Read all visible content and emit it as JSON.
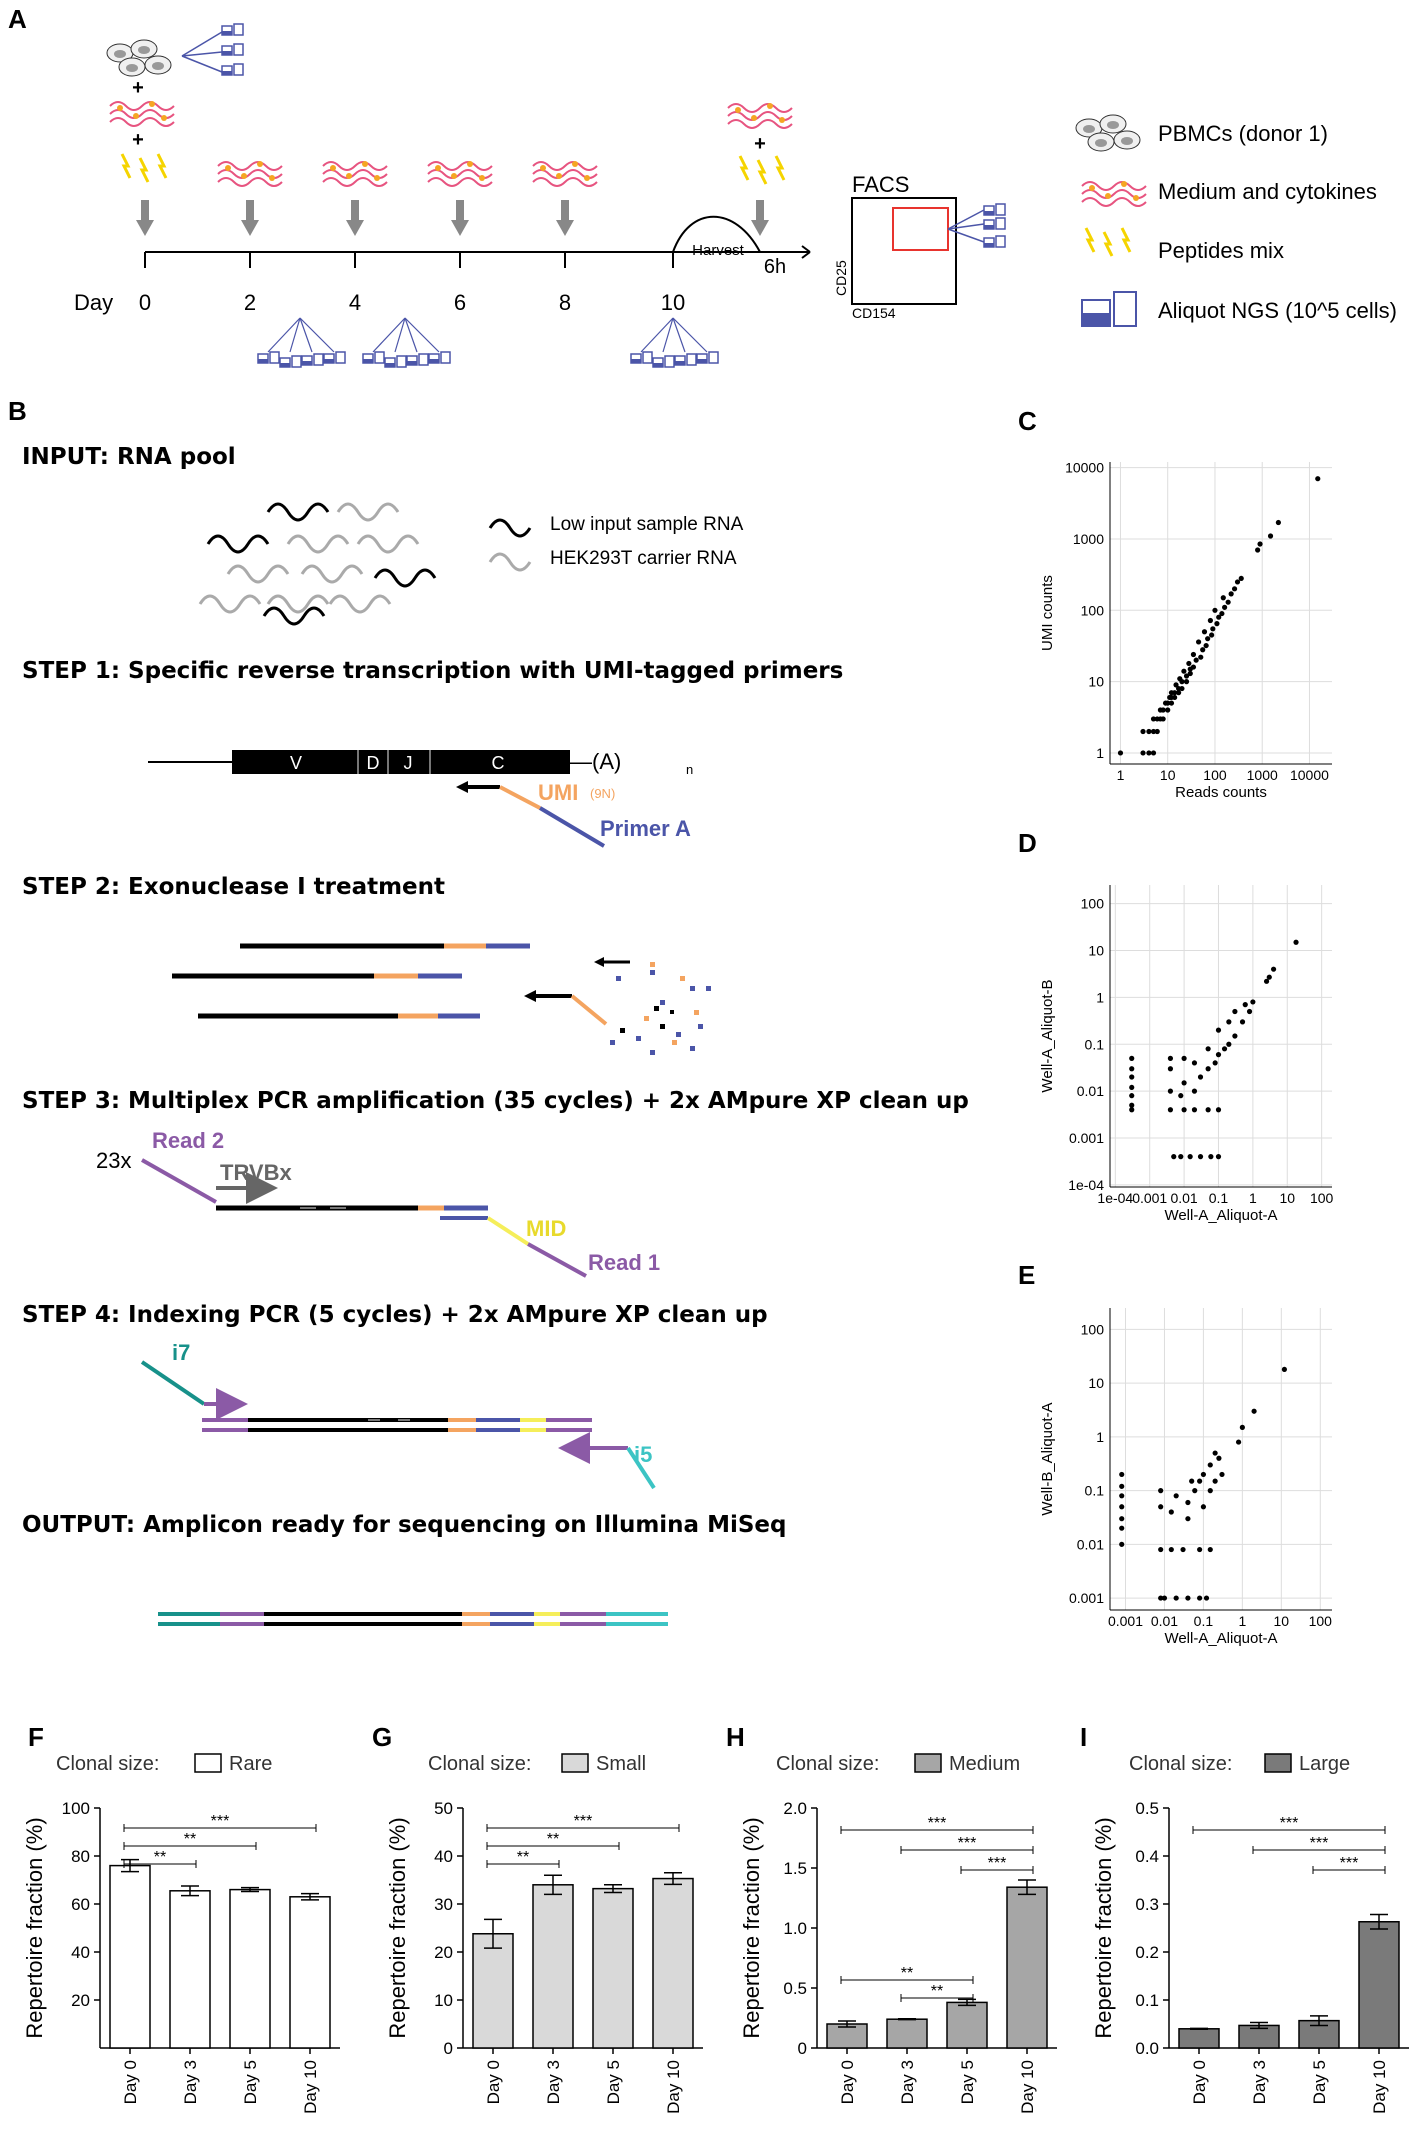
{
  "panel_labels": {
    "a": "A",
    "b": "B",
    "c": "C",
    "d": "D",
    "e": "E",
    "f": "F",
    "g": "G",
    "h": "H",
    "i": "I"
  },
  "panel_a": {
    "day_word": "Day",
    "days": [
      "0",
      "2",
      "4",
      "6",
      "8",
      "10"
    ],
    "harvest": "Harvest",
    "six_h": "6h",
    "facs_title": "FACS",
    "facs_x": "CD154",
    "facs_y": "CD25",
    "plus": "+",
    "legend": [
      {
        "icon": "cells-icon",
        "label": "PBMCs (donor 1)"
      },
      {
        "icon": "medium-icon",
        "label": "Medium and cytokines"
      },
      {
        "icon": "peptide-icon",
        "label": "Peptides mix"
      },
      {
        "icon": "aliquot-icon",
        "label": "Aliquot NGS (10^5 cells)"
      }
    ]
  },
  "panel_b": {
    "input_title": "INPUT: RNA pool",
    "legend_low": "Low input sample RNA",
    "legend_hek": "HEK293T carrier RNA",
    "step1": "STEP 1: Specific reverse transcription with UMI-tagged primers",
    "step2": "STEP 2: Exonuclease I treatment",
    "step3": "STEP 3: Multiplex PCR amplification (35 cycles) + 2x AMpure XP clean up",
    "step4": "STEP 4: Indexing PCR (5 cycles) + 2x AMpure XP clean up",
    "output": "OUTPUT: Amplicon ready for sequencing on Illumina MiSeq",
    "seg_v": "V",
    "seg_d": "D",
    "seg_j": "J",
    "seg_c": "C",
    "polya": "—(A)",
    "polya_sub": "n",
    "umi": "UMI",
    "umi_sub": "(9N)",
    "primer_a": "Primer A",
    "x23": "23x",
    "read2": "Read 2",
    "trvbx": "TRVBx",
    "mid": "MID",
    "read1": "Read 1",
    "i7": "i7",
    "i5": "i5"
  },
  "colors": {
    "orange": "#f4a460",
    "blue": "#4b55a8",
    "purple": "#8b5aa6",
    "yellow": "#f5ee5a",
    "teal_dark": "#17918a",
    "teal_light": "#3cc4c4",
    "gray_arrow": "#888888",
    "red_gate": "#e8342e",
    "bar_rare": "#ffffff",
    "bar_small": "#d9d9d9",
    "bar_medium": "#a6a6a6",
    "bar_large": "#7a7a7a"
  },
  "chart_data": [
    {
      "id": "C",
      "type": "scatter",
      "xlabel": "Reads counts",
      "ylabel": "UMI counts",
      "scale": "log",
      "xticks": [
        "1",
        "10",
        "100",
        "1000",
        "10000"
      ],
      "yticks": [
        "1",
        "10",
        "100",
        "1000",
        "10000"
      ],
      "xlim": [
        0.6,
        30000
      ],
      "ylim": [
        0.7,
        12000
      ],
      "points_note": "approx. diagonal cloud",
      "points": [
        [
          1,
          1
        ],
        [
          3,
          1
        ],
        [
          4,
          1
        ],
        [
          5,
          1
        ],
        [
          3,
          2
        ],
        [
          5,
          2
        ],
        [
          6,
          2
        ],
        [
          4,
          2
        ],
        [
          5,
          3
        ],
        [
          7,
          3
        ],
        [
          8,
          3
        ],
        [
          6,
          3
        ],
        [
          8,
          4
        ],
        [
          10,
          4
        ],
        [
          7,
          4
        ],
        [
          10,
          5
        ],
        [
          12,
          5
        ],
        [
          9,
          5
        ],
        [
          12,
          6
        ],
        [
          14,
          6
        ],
        [
          11,
          6
        ],
        [
          14,
          7
        ],
        [
          17,
          7
        ],
        [
          12,
          7
        ],
        [
          17,
          8
        ],
        [
          20,
          8
        ],
        [
          15,
          9
        ],
        [
          20,
          10
        ],
        [
          25,
          10
        ],
        [
          18,
          11
        ],
        [
          25,
          12
        ],
        [
          30,
          13
        ],
        [
          22,
          14
        ],
        [
          30,
          15
        ],
        [
          35,
          16
        ],
        [
          28,
          18
        ],
        [
          40,
          20
        ],
        [
          50,
          22
        ],
        [
          35,
          24
        ],
        [
          55,
          28
        ],
        [
          65,
          32
        ],
        [
          45,
          36
        ],
        [
          70,
          40
        ],
        [
          85,
          45
        ],
        [
          60,
          50
        ],
        [
          90,
          55
        ],
        [
          110,
          65
        ],
        [
          80,
          72
        ],
        [
          120,
          80
        ],
        [
          140,
          90
        ],
        [
          100,
          100
        ],
        [
          160,
          110
        ],
        [
          190,
          130
        ],
        [
          150,
          150
        ],
        [
          220,
          170
        ],
        [
          260,
          200
        ],
        [
          300,
          250
        ],
        [
          360,
          280
        ],
        [
          800,
          700
        ],
        [
          900,
          850
        ],
        [
          1500,
          1100
        ],
        [
          2200,
          1700
        ],
        [
          15000,
          7000
        ]
      ]
    },
    {
      "id": "D",
      "type": "scatter",
      "xlabel": "Well-A_Aliquot-A",
      "ylabel": "Well-A_Aliquot-B",
      "scale": "log",
      "xticks": [
        "1e-04",
        "0.001",
        "0.01",
        "0.1",
        "1",
        "10",
        "100"
      ],
      "yticks": [
        "1e-04",
        "0.001",
        "0.01",
        "0.1",
        "1",
        "10",
        "100"
      ],
      "xlim": [
        7e-05,
        200
      ],
      "ylim": [
        9e-05,
        250
      ],
      "points": [
        [
          0.0003,
          0.05
        ],
        [
          0.0003,
          0.03
        ],
        [
          0.0003,
          0.02
        ],
        [
          0.0003,
          0.012
        ],
        [
          0.0003,
          0.008
        ],
        [
          0.0003,
          0.005
        ],
        [
          0.0003,
          0.004
        ],
        [
          0.005,
          0.0004
        ],
        [
          0.008,
          0.0004
        ],
        [
          0.015,
          0.0004
        ],
        [
          0.03,
          0.0004
        ],
        [
          0.06,
          0.0004
        ],
        [
          0.1,
          0.0004
        ],
        [
          0.004,
          0.004
        ],
        [
          0.01,
          0.004
        ],
        [
          0.02,
          0.004
        ],
        [
          0.05,
          0.004
        ],
        [
          0.1,
          0.004
        ],
        [
          0.004,
          0.01
        ],
        [
          0.008,
          0.008
        ],
        [
          0.01,
          0.015
        ],
        [
          0.02,
          0.01
        ],
        [
          0.03,
          0.02
        ],
        [
          0.05,
          0.03
        ],
        [
          0.08,
          0.04
        ],
        [
          0.1,
          0.06
        ],
        [
          0.15,
          0.08
        ],
        [
          0.2,
          0.1
        ],
        [
          0.3,
          0.15
        ],
        [
          0.5,
          0.3
        ],
        [
          0.8,
          0.5
        ],
        [
          1,
          0.8
        ],
        [
          0.004,
          0.03
        ],
        [
          0.004,
          0.05
        ],
        [
          0.01,
          0.05
        ],
        [
          0.02,
          0.04
        ],
        [
          0.05,
          0.08
        ],
        [
          0.1,
          0.2
        ],
        [
          0.2,
          0.3
        ],
        [
          0.3,
          0.5
        ],
        [
          0.6,
          0.7
        ],
        [
          2.5,
          2.2
        ],
        [
          3,
          2.7
        ],
        [
          4,
          4
        ],
        [
          18,
          15
        ]
      ]
    },
    {
      "id": "E",
      "type": "scatter",
      "xlabel": "Well-A_Aliquot-A",
      "ylabel": "Well-B_Aliquot-A",
      "scale": "log",
      "xticks": [
        "0.001",
        "0.01",
        "0.1",
        "1",
        "10",
        "100"
      ],
      "yticks": [
        "0.001",
        "0.01",
        "0.1",
        "1",
        "10",
        "100"
      ],
      "xlim": [
        0.0004,
        200
      ],
      "ylim": [
        0.0006,
        250
      ],
      "points": [
        [
          0.0008,
          0.2
        ],
        [
          0.0008,
          0.12
        ],
        [
          0.0008,
          0.08
        ],
        [
          0.0008,
          0.05
        ],
        [
          0.0008,
          0.03
        ],
        [
          0.0008,
          0.02
        ],
        [
          0.0008,
          0.01
        ],
        [
          0.008,
          0.001
        ],
        [
          0.01,
          0.001
        ],
        [
          0.02,
          0.001
        ],
        [
          0.04,
          0.001
        ],
        [
          0.08,
          0.001
        ],
        [
          0.12,
          0.001
        ],
        [
          0.008,
          0.008
        ],
        [
          0.015,
          0.008
        ],
        [
          0.03,
          0.008
        ],
        [
          0.08,
          0.008
        ],
        [
          0.15,
          0.008
        ],
        [
          0.008,
          0.05
        ],
        [
          0.008,
          0.1
        ],
        [
          0.015,
          0.04
        ],
        [
          0.02,
          0.08
        ],
        [
          0.04,
          0.06
        ],
        [
          0.06,
          0.1
        ],
        [
          0.08,
          0.15
        ],
        [
          0.1,
          0.2
        ],
        [
          0.15,
          0.3
        ],
        [
          0.2,
          0.5
        ],
        [
          0.04,
          0.03
        ],
        [
          0.1,
          0.05
        ],
        [
          0.15,
          0.1
        ],
        [
          0.2,
          0.15
        ],
        [
          0.3,
          0.2
        ],
        [
          0.25,
          0.4
        ],
        [
          0.05,
          0.15
        ],
        [
          0.8,
          0.8
        ],
        [
          1,
          1.5
        ],
        [
          2,
          3
        ],
        [
          12,
          18
        ]
      ]
    },
    {
      "id": "F",
      "type": "bar",
      "legend_title": "Clonal size:",
      "legend_label": "Rare",
      "ylabel": "Repertoire fraction (%)",
      "categories": [
        "Day 0",
        "Day 3",
        "Day 5",
        "Day 10"
      ],
      "values": [
        76,
        65.5,
        66,
        63
      ],
      "errors": [
        2.5,
        2,
        0.8,
        1.3
      ],
      "ylim": [
        0,
        100
      ],
      "yticks": [
        "20",
        "40",
        "60",
        "80",
        "100"
      ],
      "sig": [
        {
          "from": 0,
          "to": 1,
          "label": "**"
        },
        {
          "from": 0,
          "to": 2,
          "label": "**"
        },
        {
          "from": 0,
          "to": 3,
          "label": "***"
        }
      ]
    },
    {
      "id": "G",
      "type": "bar",
      "legend_title": "Clonal size:",
      "legend_label": "Small",
      "ylabel": "Repertoire fraction (%)",
      "categories": [
        "Day 0",
        "Day 3",
        "Day 5",
        "Day 10"
      ],
      "values": [
        23.8,
        34,
        33.2,
        35.3
      ],
      "errors": [
        3,
        2,
        0.8,
        1.2
      ],
      "ylim": [
        0,
        50
      ],
      "yticks": [
        "0",
        "10",
        "20",
        "30",
        "40",
        "50"
      ],
      "sig": [
        {
          "from": 0,
          "to": 1,
          "label": "**"
        },
        {
          "from": 0,
          "to": 2,
          "label": "**"
        },
        {
          "from": 0,
          "to": 3,
          "label": "***"
        }
      ]
    },
    {
      "id": "H",
      "type": "bar",
      "legend_title": "Clonal size:",
      "legend_label": "Medium",
      "ylabel": "Repertoire fraction (%)",
      "categories": [
        "Day 0",
        "Day 3",
        "Day 5",
        "Day 10"
      ],
      "values": [
        0.2,
        0.24,
        0.38,
        1.34
      ],
      "errors": [
        0.025,
        0.004,
        0.025,
        0.06
      ],
      "ylim": [
        0,
        2.0
      ],
      "yticks": [
        "0",
        "0.5",
        "1.0",
        "1.5",
        "2.0"
      ],
      "sig": [
        {
          "from": 0,
          "to": 3,
          "label": "***"
        },
        {
          "from": 1,
          "to": 3,
          "label": "***"
        },
        {
          "from": 2,
          "to": 3,
          "label": "***"
        },
        {
          "from": 0,
          "to": 2,
          "label": "**"
        },
        {
          "from": 1,
          "to": 2,
          "label": "**"
        }
      ]
    },
    {
      "id": "I",
      "type": "bar",
      "legend_title": "Clonal size:",
      "legend_label": "Large",
      "ylabel": "Repertoire fraction (%)",
      "categories": [
        "Day 0",
        "Day 3",
        "Day 5",
        "Day 10"
      ],
      "values": [
        0.04,
        0.047,
        0.057,
        0.263
      ],
      "errors": [
        0.001,
        0.006,
        0.01,
        0.015
      ],
      "ylim": [
        0,
        0.5
      ],
      "yticks": [
        "0.0",
        "0.1",
        "0.2",
        "0.3",
        "0.4",
        "0.5"
      ],
      "sig": [
        {
          "from": 0,
          "to": 3,
          "label": "***"
        },
        {
          "from": 1,
          "to": 3,
          "label": "***"
        },
        {
          "from": 2,
          "to": 3,
          "label": "***"
        }
      ]
    }
  ]
}
